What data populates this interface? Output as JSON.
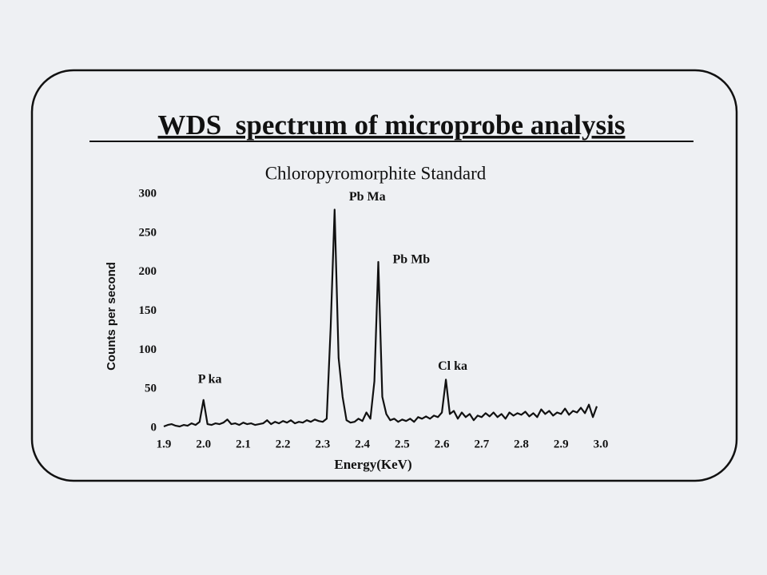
{
  "chart_data": {
    "type": "line",
    "title": "WDS  spectrum of microprobe analysis",
    "subtitle": "Chloropyromorphite Standard",
    "x_label": "Energy(KeV)",
    "y_label": "Counts per second",
    "x": [
      1.9,
      1.91,
      1.92,
      1.93,
      1.94,
      1.95,
      1.96,
      1.97,
      1.98,
      1.99,
      2.0,
      2.01,
      2.02,
      2.03,
      2.04,
      2.05,
      2.06,
      2.07,
      2.08,
      2.09,
      2.1,
      2.11,
      2.12,
      2.13,
      2.14,
      2.15,
      2.16,
      2.17,
      2.18,
      2.19,
      2.2,
      2.21,
      2.22,
      2.23,
      2.24,
      2.25,
      2.26,
      2.27,
      2.28,
      2.29,
      2.3,
      2.31,
      2.32,
      2.33,
      2.34,
      2.35,
      2.36,
      2.37,
      2.38,
      2.39,
      2.4,
      2.41,
      2.42,
      2.43,
      2.44,
      2.45,
      2.46,
      2.47,
      2.48,
      2.49,
      2.5,
      2.51,
      2.52,
      2.53,
      2.54,
      2.55,
      2.56,
      2.57,
      2.58,
      2.59,
      2.6,
      2.61,
      2.62,
      2.63,
      2.64,
      2.65,
      2.66,
      2.67,
      2.68,
      2.69,
      2.7,
      2.71,
      2.72,
      2.73,
      2.74,
      2.75,
      2.76,
      2.77,
      2.78,
      2.79,
      2.8,
      2.81,
      2.82,
      2.83,
      2.84,
      2.85,
      2.86,
      2.87,
      2.88,
      2.89,
      2.9,
      2.91,
      2.92,
      2.93,
      2.94,
      2.95,
      2.96,
      2.97,
      2.98,
      2.99
    ],
    "series": [
      {
        "name": "Chloropyromorphite Standard",
        "color": "#111111",
        "values": [
          2,
          4,
          5,
          3,
          2,
          4,
          3,
          6,
          4,
          8,
          36,
          5,
          4,
          6,
          5,
          7,
          11,
          5,
          6,
          4,
          7,
          5,
          6,
          4,
          5,
          6,
          10,
          5,
          8,
          6,
          9,
          7,
          10,
          6,
          8,
          7,
          10,
          8,
          11,
          9,
          8,
          12,
          130,
          280,
          90,
          40,
          10,
          7,
          8,
          12,
          9,
          20,
          12,
          60,
          213,
          40,
          18,
          10,
          12,
          8,
          11,
          9,
          12,
          8,
          14,
          12,
          15,
          12,
          16,
          14,
          20,
          62,
          18,
          22,
          12,
          20,
          14,
          18,
          10,
          16,
          14,
          19,
          15,
          20,
          14,
          18,
          12,
          20,
          16,
          19,
          17,
          21,
          15,
          19,
          14,
          24,
          18,
          22,
          16,
          20,
          18,
          25,
          17,
          22,
          20,
          26,
          19,
          30,
          14,
          28
        ]
      }
    ],
    "xlim": [
      1.9,
      3.0
    ],
    "ylim": [
      0,
      300
    ],
    "xticks": [
      1.9,
      {
        "value": 2,
        "label": "2.0"
      },
      2.1,
      2.2,
      2.3,
      2.4,
      2.5,
      2.6,
      2.7,
      2.8,
      2.9,
      {
        "value": 3,
        "label": "3.0"
      }
    ],
    "yticks": [
      0,
      50,
      100,
      150,
      200,
      250,
      300
    ],
    "annotations": [
      {
        "text": "P ka",
        "x": 2.0,
        "y": 36
      },
      {
        "text": "Pb Ma",
        "x": 2.33,
        "y": 280
      },
      {
        "text": "Pb Mb",
        "x": 2.44,
        "y": 213
      },
      {
        "text": "Cl ka",
        "x": 2.61,
        "y": 62
      }
    ]
  }
}
